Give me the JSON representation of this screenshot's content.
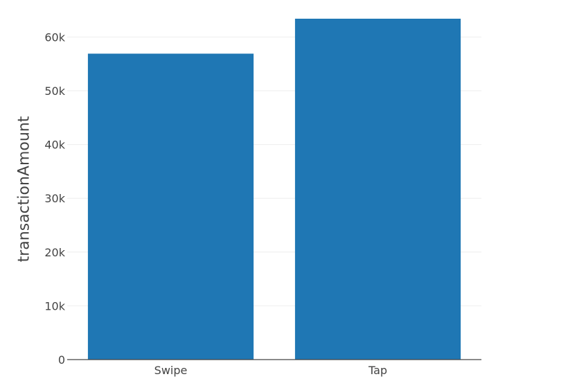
{
  "chart_data": {
    "type": "bar",
    "categories": [
      "Swipe",
      "Tap"
    ],
    "values": [
      56900,
      63400
    ],
    "xlabel": "",
    "ylabel": "transactionAmount",
    "ylim": [
      0,
      63400
    ],
    "yticks": [
      0,
      10000,
      20000,
      30000,
      40000,
      50000,
      60000
    ],
    "ytick_labels": [
      "0",
      "10k",
      "20k",
      "30k",
      "40k",
      "50k",
      "60k"
    ],
    "grid": true,
    "legend": "none",
    "bar_color": "#1f77b4"
  }
}
